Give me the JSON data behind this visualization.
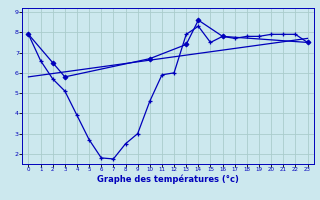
{
  "title": "Graphe des températures (°c)",
  "bg_color": "#cce8ee",
  "line_color": "#0000bb",
  "grid_color": "#aacccc",
  "series1_x": [
    0,
    1,
    2,
    3,
    4,
    5,
    6,
    7,
    8,
    9,
    10,
    11,
    12,
    13,
    14,
    15,
    16,
    17,
    18,
    19,
    20,
    21,
    22,
    23
  ],
  "series1_y": [
    7.9,
    6.6,
    5.7,
    5.1,
    3.9,
    2.7,
    1.8,
    1.75,
    2.5,
    3.0,
    4.6,
    5.9,
    6.0,
    7.9,
    8.3,
    7.5,
    7.8,
    7.7,
    7.8,
    7.8,
    7.9,
    7.9,
    7.9,
    7.5
  ],
  "series2_x": [
    0,
    2,
    3,
    10,
    13,
    14,
    16,
    23
  ],
  "series2_y": [
    7.9,
    6.5,
    5.8,
    6.7,
    7.4,
    8.6,
    7.8,
    7.5
  ],
  "series3_x": [
    0,
    23
  ],
  "series3_y": [
    5.8,
    7.7
  ],
  "xmin": -0.5,
  "xmax": 23.5,
  "ymin": 1.5,
  "ymax": 9.2,
  "yticks": [
    2,
    3,
    4,
    5,
    6,
    7,
    8,
    9
  ],
  "xticks": [
    0,
    1,
    2,
    3,
    4,
    5,
    6,
    7,
    8,
    9,
    10,
    11,
    12,
    13,
    14,
    15,
    16,
    17,
    18,
    19,
    20,
    21,
    22,
    23
  ]
}
